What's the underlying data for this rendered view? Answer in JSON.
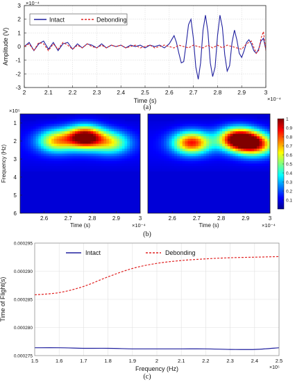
{
  "chart_data": [
    {
      "id": "a",
      "type": "line",
      "caption": "(a)",
      "xlabel": "Time (s)",
      "ylabel": "Amplitude (V)",
      "x_exponent": "×10⁻⁴",
      "y_exponent": "×10⁻⁴",
      "xlim": [
        2.0,
        3.0
      ],
      "ylim": [
        -3,
        3
      ],
      "xticks": [
        "2",
        "2.1",
        "2.2",
        "2.3",
        "2.4",
        "2.5",
        "2.6",
        "2.7",
        "2.8",
        "2.9",
        "3"
      ],
      "yticks": [
        "-3",
        "-2",
        "-1",
        "0",
        "1",
        "2",
        "3"
      ],
      "grid": true,
      "legend_position": "top-left",
      "series": [
        {
          "name": "Intact",
          "color": "#1f1f9e",
          "style": "solid",
          "x": [
            2.0,
            2.02,
            2.04,
            2.06,
            2.08,
            2.1,
            2.12,
            2.14,
            2.16,
            2.18,
            2.2,
            2.22,
            2.24,
            2.26,
            2.28,
            2.3,
            2.32,
            2.34,
            2.36,
            2.38,
            2.4,
            2.42,
            2.44,
            2.46,
            2.48,
            2.5,
            2.52,
            2.54,
            2.56,
            2.58,
            2.6,
            2.61,
            2.62,
            2.63,
            2.64,
            2.65,
            2.66,
            2.67,
            2.68,
            2.69,
            2.7,
            2.71,
            2.72,
            2.73,
            2.74,
            2.75,
            2.76,
            2.77,
            2.78,
            2.79,
            2.8,
            2.81,
            2.82,
            2.83,
            2.84,
            2.85,
            2.86,
            2.87,
            2.88,
            2.89,
            2.9,
            2.91,
            2.92,
            2.93,
            2.94,
            2.95,
            2.96,
            2.97,
            2.98,
            2.99,
            3.0
          ],
          "y": [
            0.0,
            0.3,
            -0.3,
            0.2,
            0.4,
            -0.2,
            0.3,
            -0.3,
            0.2,
            0.3,
            -0.2,
            0.2,
            -0.1,
            0.2,
            0.1,
            -0.1,
            0.2,
            -0.1,
            0.1,
            0.0,
            0.1,
            -0.1,
            0.1,
            0.0,
            0.1,
            -0.1,
            0.1,
            0.0,
            0.1,
            -0.1,
            0.2,
            0.5,
            0.8,
            0.3,
            -0.5,
            -1.2,
            -1.1,
            0.2,
            1.6,
            2.0,
            0.6,
            -1.5,
            -2.4,
            -1.2,
            1.2,
            2.3,
            1.1,
            -1.2,
            -2.2,
            -1.5,
            0.8,
            2.3,
            1.4,
            -0.6,
            -1.8,
            -1.4,
            0.3,
            1.2,
            0.5,
            -0.5,
            -0.8,
            -0.3,
            0.3,
            0.5,
            0.2,
            -0.3,
            -0.5,
            -0.2,
            0.4,
            0.6,
            -0.2
          ]
        },
        {
          "name": "Debonding",
          "color": "#e02020",
          "style": "dashed",
          "x": [
            2.0,
            2.02,
            2.04,
            2.06,
            2.08,
            2.1,
            2.12,
            2.14,
            2.16,
            2.18,
            2.2,
            2.22,
            2.24,
            2.26,
            2.28,
            2.3,
            2.32,
            2.34,
            2.36,
            2.38,
            2.4,
            2.42,
            2.44,
            2.46,
            2.48,
            2.5,
            2.52,
            2.54,
            2.56,
            2.58,
            2.6,
            2.62,
            2.64,
            2.66,
            2.68,
            2.7,
            2.72,
            2.74,
            2.76,
            2.78,
            2.8,
            2.82,
            2.84,
            2.86,
            2.88,
            2.9,
            2.92,
            2.94,
            2.96,
            2.97,
            2.98,
            2.99,
            3.0
          ],
          "y": [
            0.0,
            0.2,
            -0.3,
            0.3,
            0.2,
            -0.3,
            0.2,
            -0.2,
            0.3,
            0.1,
            -0.2,
            0.1,
            -0.1,
            0.2,
            0.0,
            -0.1,
            0.1,
            -0.1,
            0.1,
            0.0,
            0.1,
            -0.1,
            0.0,
            0.1,
            -0.1,
            0.0,
            0.1,
            -0.1,
            0.0,
            0.1,
            0.0,
            -0.1,
            0.1,
            0.0,
            -0.1,
            0.1,
            0.0,
            -0.1,
            0.1,
            -0.1,
            0.1,
            -0.1,
            0.1,
            0.0,
            -0.1,
            -0.2,
            0.2,
            0.4,
            -0.5,
            -0.3,
            0.6,
            1.1,
            -0.3
          ]
        }
      ]
    },
    {
      "id": "b-left",
      "type": "heatmap",
      "caption": "(b)",
      "xlabel": "Time (s)",
      "ylabel": "Frequency (Hz)",
      "x_exponent": "×10⁻⁴",
      "y_exponent": "×10⁵",
      "xlim": [
        2.5,
        3.0
      ],
      "ylim": [
        0.5,
        6.0
      ],
      "xticks": [
        "2.6",
        "2.7",
        "2.8",
        "2.9",
        "3"
      ],
      "yticks": [
        "1",
        "2",
        "3",
        "4",
        "5",
        "6"
      ],
      "hotspots": [
        {
          "t": 2.77,
          "f": 1.8,
          "intensity": 1.0
        },
        {
          "t": 2.65,
          "f": 2.0,
          "intensity": 0.55
        },
        {
          "t": 2.88,
          "f": 2.1,
          "intensity": 0.45
        }
      ]
    },
    {
      "id": "b-right",
      "type": "heatmap",
      "xlabel": "Time (s)",
      "x_exponent": "×10⁻⁴",
      "xlim": [
        2.5,
        3.0
      ],
      "ylim": [
        0.5,
        6.0
      ],
      "xticks": [
        "2.6",
        "2.7",
        "2.8",
        "2.9",
        "3"
      ],
      "hotspots": [
        {
          "t": 2.87,
          "f": 1.9,
          "intensity": 1.0
        },
        {
          "t": 2.68,
          "f": 2.1,
          "intensity": 0.75
        },
        {
          "t": 2.94,
          "f": 2.2,
          "intensity": 0.7
        }
      ],
      "colorbar": {
        "min": 0.0,
        "max": 1.0,
        "ticks": [
          "0.1",
          "0.2",
          "0.3",
          "0.4",
          "0.5",
          "0.6",
          "0.7",
          "0.8",
          "0.9",
          "1"
        ]
      }
    },
    {
      "id": "c",
      "type": "line",
      "caption": "(c)",
      "xlabel": "Frequency (Hz)",
      "ylabel": "Time of Flight(s)",
      "x_exponent": "×10⁵",
      "xlim": [
        1.5,
        2.5
      ],
      "ylim": [
        0.000275,
        0.000295
      ],
      "xticks": [
        "1.5",
        "1.6",
        "1.7",
        "1.8",
        "1.9",
        "2",
        "2.1",
        "2.2",
        "2.3",
        "2.4",
        "2.5"
      ],
      "yticks": [
        "0.000275",
        "0.000280",
        "0.000285",
        "0.000290",
        "0.000295"
      ],
      "grid": true,
      "legend_position": "top",
      "series": [
        {
          "name": "Intact",
          "color": "#1f1f9e",
          "style": "solid",
          "x": [
            1.5,
            1.6,
            1.7,
            1.8,
            1.9,
            2.0,
            2.1,
            2.2,
            2.3,
            2.4,
            2.5
          ],
          "y": [
            0.0002764,
            0.0002764,
            0.0002763,
            0.0002763,
            0.0002762,
            0.0002762,
            0.0002762,
            0.0002762,
            0.0002761,
            0.0002761,
            0.0002764
          ]
        },
        {
          "name": "Debonding",
          "color": "#e02020",
          "style": "dashed",
          "x": [
            1.5,
            1.6,
            1.7,
            1.8,
            1.9,
            2.0,
            2.1,
            2.2,
            2.3,
            2.4,
            2.5
          ],
          "y": [
            0.0002858,
            0.0002862,
            0.0002873,
            0.000289,
            0.0002905,
            0.0002914,
            0.0002919,
            0.0002922,
            0.0002924,
            0.0002925,
            0.0002926
          ]
        }
      ]
    }
  ]
}
